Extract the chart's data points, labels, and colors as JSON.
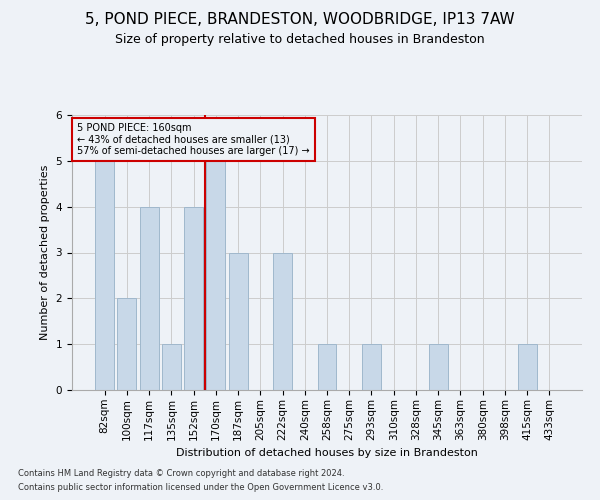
{
  "title1": "5, POND PIECE, BRANDESTON, WOODBRIDGE, IP13 7AW",
  "title2": "Size of property relative to detached houses in Brandeston",
  "xlabel": "Distribution of detached houses by size in Brandeston",
  "ylabel": "Number of detached properties",
  "categories": [
    "82sqm",
    "100sqm",
    "117sqm",
    "135sqm",
    "152sqm",
    "170sqm",
    "187sqm",
    "205sqm",
    "222sqm",
    "240sqm",
    "258sqm",
    "275sqm",
    "293sqm",
    "310sqm",
    "328sqm",
    "345sqm",
    "363sqm",
    "380sqm",
    "398sqm",
    "415sqm",
    "433sqm"
  ],
  "values": [
    5,
    2,
    4,
    1,
    4,
    5,
    3,
    0,
    3,
    0,
    1,
    0,
    1,
    0,
    0,
    1,
    0,
    0,
    0,
    1,
    0
  ],
  "bar_color": "#c8d8e8",
  "bar_edgecolor": "#a0b8cc",
  "vline_x_index": 4.5,
  "vline_color": "#cc0000",
  "annotation_text": "5 POND PIECE: 160sqm\n← 43% of detached houses are smaller (13)\n57% of semi-detached houses are larger (17) →",
  "annotation_box_color": "#cc0000",
  "ylim": [
    0,
    6
  ],
  "yticks": [
    0,
    1,
    2,
    3,
    4,
    5,
    6
  ],
  "footer1": "Contains HM Land Registry data © Crown copyright and database right 2024.",
  "footer2": "Contains public sector information licensed under the Open Government Licence v3.0.",
  "title1_fontsize": 11,
  "title2_fontsize": 9,
  "axis_fontsize": 7.5,
  "ylabel_fontsize": 8,
  "xlabel_fontsize": 8,
  "annotation_fontsize": 7,
  "footer_fontsize": 6,
  "grid_color": "#cccccc",
  "background_color": "#eef2f7"
}
